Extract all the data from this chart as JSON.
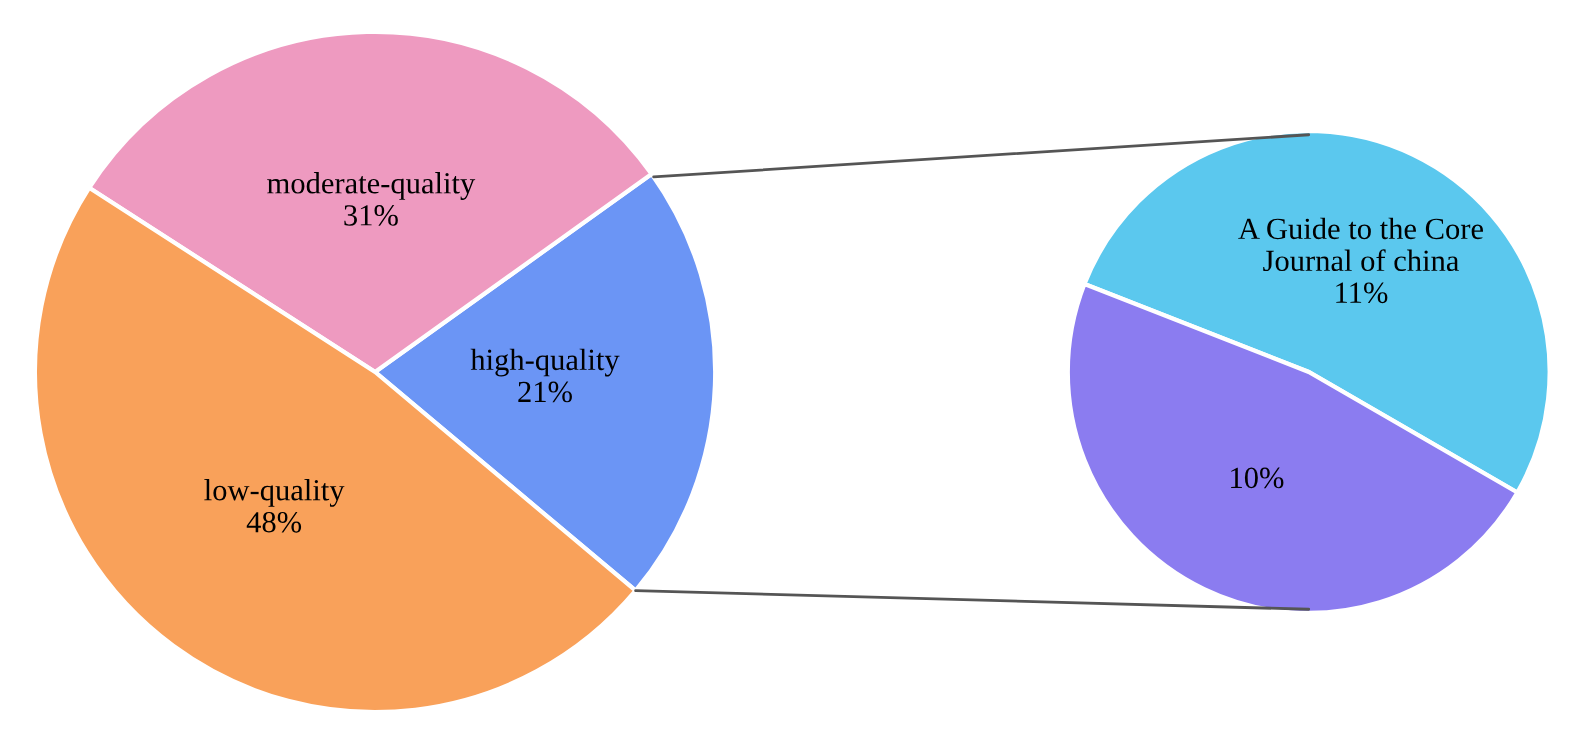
{
  "chart_data": [
    {
      "type": "pie",
      "categories": [
        "high-quality",
        "moderate-quality",
        "low-quality"
      ],
      "values": [
        21,
        31,
        48
      ],
      "value_labels": [
        "21%",
        "31%",
        "48%"
      ],
      "colors": [
        "#6b95f5",
        "#ee9ac0",
        "#f9a15a"
      ]
    },
    {
      "type": "pie",
      "categories": [
        "A Guide to the Core\nJournal of china",
        null
      ],
      "values": [
        11,
        10
      ],
      "value_labels": [
        "11%",
        "10%"
      ],
      "colors": [
        "#5bc8ee",
        "#8b7cf0"
      ]
    }
  ]
}
